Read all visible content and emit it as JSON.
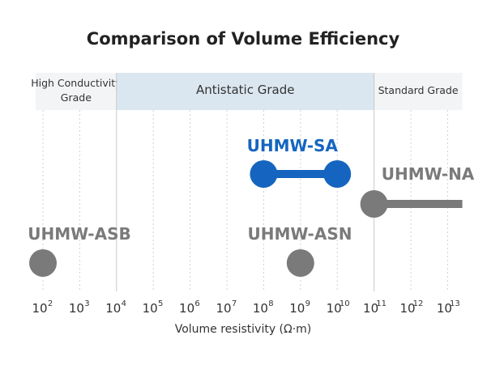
{
  "chart_data": {
    "type": "range",
    "title": "Comparison of Volume Efficiency",
    "xlabel": "Volume resistivity (Ω·m)",
    "x_scale": "log10",
    "xlim_exponent": [
      2,
      13
    ],
    "grid": true,
    "ticks": [
      {
        "base": "10",
        "exp": "2"
      },
      {
        "base": "10",
        "exp": "3"
      },
      {
        "base": "10",
        "exp": "4"
      },
      {
        "base": "10",
        "exp": "5"
      },
      {
        "base": "10",
        "exp": "6"
      },
      {
        "base": "10",
        "exp": "7"
      },
      {
        "base": "10",
        "exp": "8"
      },
      {
        "base": "10",
        "exp": "9"
      },
      {
        "base": "10",
        "exp": "10"
      },
      {
        "base": "10",
        "exp": "11"
      },
      {
        "base": "10",
        "exp": "12"
      },
      {
        "base": "10",
        "exp": "13"
      }
    ],
    "bands": [
      {
        "label_lines": [
          "High Conductivity",
          "Grade"
        ],
        "from_exp": 1.8,
        "to_exp": 4,
        "color": "#f2f4f6"
      },
      {
        "label_lines": [
          "Antistatic Grade"
        ],
        "from_exp": 4,
        "to_exp": 11,
        "color": "#dbe7f0"
      },
      {
        "label_lines": [
          "Standard Grade"
        ],
        "from_exp": 11,
        "to_exp": 13.4,
        "color": "#f2f4f6"
      }
    ],
    "series": [
      {
        "name": "UHMW-SA",
        "from_exp": 8,
        "to_exp": 10,
        "color": "#1565c0",
        "row": 1
      },
      {
        "name": "UHMW-NA",
        "from_exp": 11,
        "to_exp": 13.4,
        "color": "#7a7a7a",
        "row": 2,
        "open_ended": true
      },
      {
        "name": "UHMW-ASB",
        "from_exp": 2,
        "to_exp": 2,
        "color": "#7a7a7a",
        "row": 3
      },
      {
        "name": "UHMW-ASN",
        "from_exp": 9,
        "to_exp": 9,
        "color": "#7a7a7a",
        "row": 3
      }
    ]
  }
}
